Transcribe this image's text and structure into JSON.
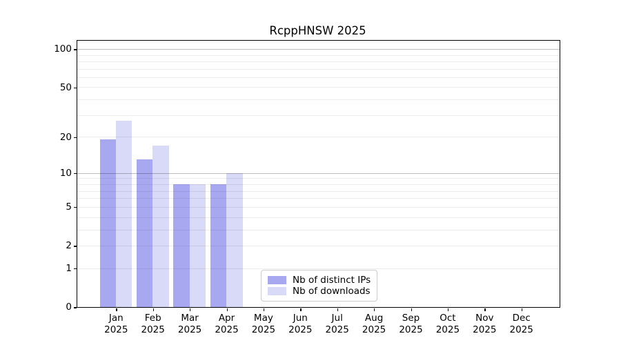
{
  "chart_data": {
    "type": "bar",
    "title": "RcppHNSW 2025",
    "x_months": [
      "Jan",
      "Feb",
      "Mar",
      "Apr",
      "May",
      "Jun",
      "Jul",
      "Aug",
      "Sep",
      "Oct",
      "Nov",
      "Dec"
    ],
    "x_year": "2025",
    "categories": [
      "Jan 2025",
      "Feb 2025",
      "Mar 2025",
      "Apr 2025",
      "May 2025",
      "Jun 2025",
      "Jul 2025",
      "Aug 2025",
      "Sep 2025",
      "Oct 2025",
      "Nov 2025",
      "Dec 2025"
    ],
    "series": [
      {
        "name": "Nb of distinct IPs",
        "color": "#a8a8f0",
        "values": [
          19,
          13,
          8,
          8,
          0,
          0,
          0,
          0,
          0,
          0,
          0,
          0
        ]
      },
      {
        "name": "Nb of downloads",
        "color": "#d9d9f8",
        "values": [
          27,
          17,
          8,
          10,
          0,
          0,
          0,
          0,
          0,
          0,
          0,
          0
        ]
      }
    ],
    "yscale": "log1p",
    "ylim": [
      0,
      116
    ],
    "y_tick_values": [
      100,
      50,
      20,
      10,
      5,
      2,
      1,
      0
    ],
    "y_tick_labels": [
      "100",
      "50",
      "20",
      "10",
      "5",
      "2",
      "1",
      "0"
    ],
    "major_gridlines": [
      100,
      10
    ],
    "minor_gridlines": [
      90,
      80,
      70,
      60,
      50,
      40,
      30,
      20,
      9,
      8,
      7,
      6,
      5,
      4,
      3,
      2,
      1
    ],
    "grid": "on",
    "legend_position": "lower center-left"
  }
}
